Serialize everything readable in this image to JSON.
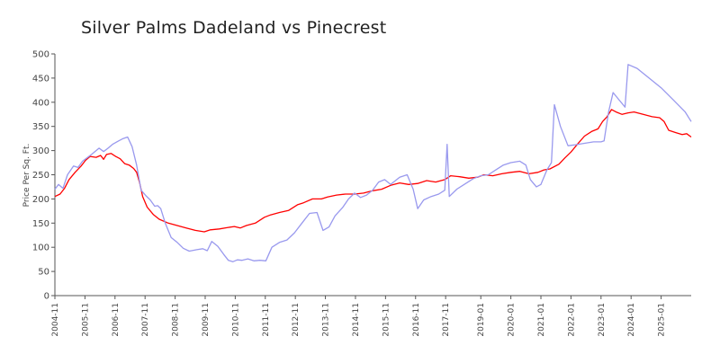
{
  "chart_data": {
    "type": "line",
    "title": "Silver Palms Dadeland vs Pinecrest",
    "xlabel": "",
    "ylabel": "Price Per Sq. Ft.",
    "ylim": [
      0,
      500
    ],
    "yticks": [
      0,
      50,
      100,
      150,
      200,
      250,
      300,
      350,
      400,
      450,
      500
    ],
    "xlim": [
      2004.83,
      2026.0
    ],
    "xticks": [
      {
        "t": 2004.83,
        "label": "2004-11"
      },
      {
        "t": 2005.83,
        "label": "2005-11"
      },
      {
        "t": 2006.83,
        "label": "2006-11"
      },
      {
        "t": 2007.83,
        "label": "2007-11"
      },
      {
        "t": 2008.83,
        "label": "2008-11"
      },
      {
        "t": 2009.83,
        "label": "2009-11"
      },
      {
        "t": 2010.83,
        "label": "2010-11"
      },
      {
        "t": 2011.83,
        "label": "2011-11"
      },
      {
        "t": 2012.83,
        "label": "2012-11"
      },
      {
        "t": 2013.83,
        "label": "2013-11"
      },
      {
        "t": 2014.83,
        "label": "2014-11"
      },
      {
        "t": 2015.83,
        "label": "2015-11"
      },
      {
        "t": 2016.83,
        "label": "2016-11"
      },
      {
        "t": 2017.83,
        "label": "2017-11"
      },
      {
        "t": 2019.0,
        "label": "2019-01"
      },
      {
        "t": 2020.0,
        "label": "2020-01"
      },
      {
        "t": 2021.0,
        "label": "2021-01"
      },
      {
        "t": 2022.0,
        "label": "2022-01"
      },
      {
        "t": 2023.0,
        "label": "2023-01"
      },
      {
        "t": 2024.0,
        "label": "2024-01"
      },
      {
        "t": 2025.0,
        "label": "2025-01"
      }
    ],
    "series": [
      {
        "name": "Silver Palms Dadeland",
        "color": "#ff0000",
        "points": [
          [
            2004.83,
            205
          ],
          [
            2005.0,
            210
          ],
          [
            2005.15,
            222
          ],
          [
            2005.3,
            240
          ],
          [
            2005.5,
            255
          ],
          [
            2005.7,
            268
          ],
          [
            2005.85,
            280
          ],
          [
            2006.0,
            288
          ],
          [
            2006.2,
            286
          ],
          [
            2006.35,
            290
          ],
          [
            2006.45,
            282
          ],
          [
            2006.55,
            292
          ],
          [
            2006.7,
            294
          ],
          [
            2006.85,
            288
          ],
          [
            2007.0,
            283
          ],
          [
            2007.15,
            273
          ],
          [
            2007.3,
            270
          ],
          [
            2007.45,
            263
          ],
          [
            2007.55,
            255
          ],
          [
            2007.65,
            233
          ],
          [
            2007.75,
            205
          ],
          [
            2007.9,
            183
          ],
          [
            2008.1,
            168
          ],
          [
            2008.3,
            158
          ],
          [
            2008.6,
            150
          ],
          [
            2008.9,
            145
          ],
          [
            2009.2,
            140
          ],
          [
            2009.5,
            135
          ],
          [
            2009.8,
            132
          ],
          [
            2010.0,
            136
          ],
          [
            2010.3,
            138
          ],
          [
            2010.6,
            141
          ],
          [
            2010.8,
            143
          ],
          [
            2011.0,
            140
          ],
          [
            2011.2,
            145
          ],
          [
            2011.5,
            150
          ],
          [
            2011.8,
            162
          ],
          [
            2012.0,
            167
          ],
          [
            2012.3,
            172
          ],
          [
            2012.6,
            176
          ],
          [
            2012.9,
            188
          ],
          [
            2013.1,
            192
          ],
          [
            2013.4,
            200
          ],
          [
            2013.7,
            200
          ],
          [
            2013.9,
            204
          ],
          [
            2014.2,
            208
          ],
          [
            2014.5,
            210
          ],
          [
            2014.8,
            210
          ],
          [
            2015.1,
            212
          ],
          [
            2015.4,
            217
          ],
          [
            2015.7,
            220
          ],
          [
            2016.0,
            228
          ],
          [
            2016.3,
            233
          ],
          [
            2016.6,
            230
          ],
          [
            2016.9,
            232
          ],
          [
            2017.2,
            238
          ],
          [
            2017.5,
            235
          ],
          [
            2017.8,
            240
          ],
          [
            2018.0,
            248
          ],
          [
            2018.3,
            246
          ],
          [
            2018.6,
            243
          ],
          [
            2018.9,
            245
          ],
          [
            2019.1,
            250
          ],
          [
            2019.4,
            248
          ],
          [
            2019.7,
            252
          ],
          [
            2020.0,
            255
          ],
          [
            2020.3,
            257
          ],
          [
            2020.6,
            252
          ],
          [
            2020.9,
            255
          ],
          [
            2021.1,
            260
          ],
          [
            2021.3,
            262
          ],
          [
            2021.6,
            272
          ],
          [
            2021.8,
            285
          ],
          [
            2022.0,
            297
          ],
          [
            2022.2,
            312
          ],
          [
            2022.45,
            330
          ],
          [
            2022.7,
            340
          ],
          [
            2022.9,
            345
          ],
          [
            2023.05,
            360
          ],
          [
            2023.2,
            370
          ],
          [
            2023.35,
            385
          ],
          [
            2023.5,
            380
          ],
          [
            2023.7,
            375
          ],
          [
            2023.9,
            378
          ],
          [
            2024.1,
            380
          ],
          [
            2024.4,
            375
          ],
          [
            2024.7,
            370
          ],
          [
            2024.95,
            368
          ],
          [
            2025.1,
            360
          ],
          [
            2025.25,
            342
          ],
          [
            2025.5,
            337
          ],
          [
            2025.7,
            333
          ],
          [
            2025.85,
            335
          ],
          [
            2026.0,
            328
          ]
        ]
      },
      {
        "name": "Pinecrest",
        "color": "#9999ee",
        "points": [
          [
            2004.83,
            220
          ],
          [
            2004.95,
            230
          ],
          [
            2005.1,
            222
          ],
          [
            2005.25,
            250
          ],
          [
            2005.45,
            268
          ],
          [
            2005.6,
            265
          ],
          [
            2005.75,
            278
          ],
          [
            2005.9,
            285
          ],
          [
            2006.05,
            292
          ],
          [
            2006.2,
            300
          ],
          [
            2006.3,
            305
          ],
          [
            2006.45,
            298
          ],
          [
            2006.6,
            305
          ],
          [
            2006.75,
            313
          ],
          [
            2006.95,
            320
          ],
          [
            2007.1,
            325
          ],
          [
            2007.25,
            328
          ],
          [
            2007.4,
            308
          ],
          [
            2007.55,
            270
          ],
          [
            2007.7,
            218
          ],
          [
            2007.85,
            207
          ],
          [
            2008.0,
            198
          ],
          [
            2008.15,
            185
          ],
          [
            2008.25,
            186
          ],
          [
            2008.35,
            180
          ],
          [
            2008.5,
            150
          ],
          [
            2008.7,
            120
          ],
          [
            2008.9,
            110
          ],
          [
            2009.1,
            98
          ],
          [
            2009.3,
            92
          ],
          [
            2009.55,
            95
          ],
          [
            2009.75,
            97
          ],
          [
            2009.9,
            93
          ],
          [
            2010.05,
            112
          ],
          [
            2010.25,
            102
          ],
          [
            2010.45,
            85
          ],
          [
            2010.6,
            73
          ],
          [
            2010.75,
            70
          ],
          [
            2010.9,
            74
          ],
          [
            2011.05,
            73
          ],
          [
            2011.25,
            76
          ],
          [
            2011.45,
            72
          ],
          [
            2011.65,
            73
          ],
          [
            2011.85,
            72
          ],
          [
            2012.05,
            100
          ],
          [
            2012.3,
            110
          ],
          [
            2012.55,
            115
          ],
          [
            2012.8,
            130
          ],
          [
            2013.05,
            150
          ],
          [
            2013.3,
            170
          ],
          [
            2013.55,
            172
          ],
          [
            2013.75,
            135
          ],
          [
            2013.95,
            142
          ],
          [
            2014.15,
            165
          ],
          [
            2014.4,
            182
          ],
          [
            2014.6,
            200
          ],
          [
            2014.8,
            212
          ],
          [
            2015.0,
            203
          ],
          [
            2015.2,
            208
          ],
          [
            2015.4,
            218
          ],
          [
            2015.6,
            235
          ],
          [
            2015.8,
            240
          ],
          [
            2016.0,
            230
          ],
          [
            2016.3,
            245
          ],
          [
            2016.55,
            250
          ],
          [
            2016.75,
            220
          ],
          [
            2016.9,
            180
          ],
          [
            2017.1,
            198
          ],
          [
            2017.35,
            205
          ],
          [
            2017.6,
            210
          ],
          [
            2017.8,
            218
          ],
          [
            2017.88,
            313
          ],
          [
            2017.95,
            205
          ],
          [
            2018.2,
            220
          ],
          [
            2018.5,
            232
          ],
          [
            2018.75,
            242
          ],
          [
            2019.0,
            248
          ],
          [
            2019.25,
            250
          ],
          [
            2019.5,
            260
          ],
          [
            2019.75,
            270
          ],
          [
            2020.0,
            275
          ],
          [
            2020.3,
            278
          ],
          [
            2020.5,
            270
          ],
          [
            2020.65,
            240
          ],
          [
            2020.85,
            225
          ],
          [
            2021.0,
            230
          ],
          [
            2021.2,
            260
          ],
          [
            2021.35,
            275
          ],
          [
            2021.45,
            395
          ],
          [
            2021.65,
            350
          ],
          [
            2021.9,
            310
          ],
          [
            2022.15,
            312
          ],
          [
            2022.45,
            315
          ],
          [
            2022.75,
            318
          ],
          [
            2023.0,
            318
          ],
          [
            2023.1,
            320
          ],
          [
            2023.25,
            380
          ],
          [
            2023.4,
            420
          ],
          [
            2023.6,
            405
          ],
          [
            2023.8,
            390
          ],
          [
            2023.9,
            478
          ],
          [
            2024.2,
            470
          ],
          [
            2024.6,
            450
          ],
          [
            2025.0,
            430
          ],
          [
            2025.4,
            405
          ],
          [
            2025.8,
            380
          ],
          [
            2026.0,
            360
          ]
        ]
      }
    ],
    "legend": "none",
    "grid": false
  }
}
